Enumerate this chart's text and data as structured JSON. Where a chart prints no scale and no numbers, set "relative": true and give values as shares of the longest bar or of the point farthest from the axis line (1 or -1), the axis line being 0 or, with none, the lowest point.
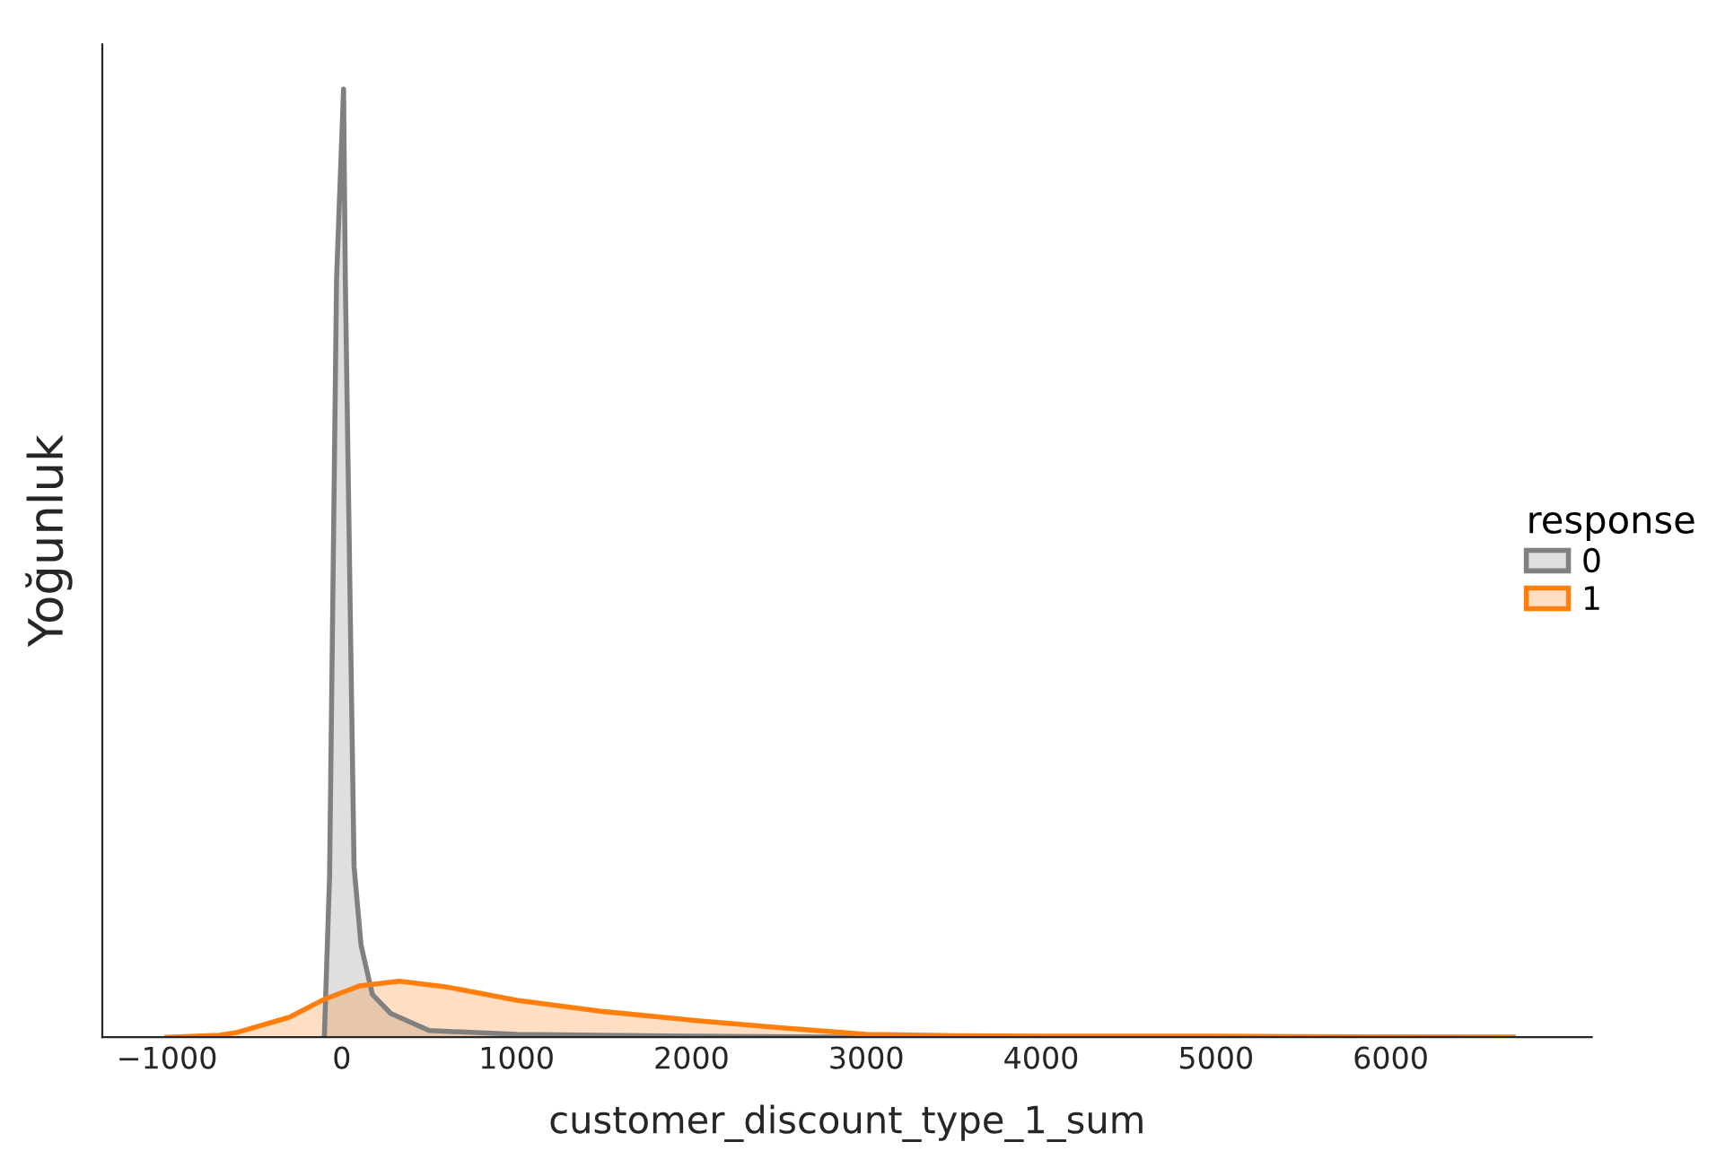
{
  "chart_data": {
    "type": "area",
    "relative": true,
    "xlabel": "customer_discount_type_1_sum",
    "ylabel": "Yoğunluk",
    "legend_title": "response",
    "legend": "right",
    "grid": false,
    "tick_labels": "x",
    "xlim": [
      -1370,
      7150
    ],
    "xticks": [
      {
        "value": -1000,
        "label": "−1000"
      },
      0,
      1000,
      2000,
      3000,
      4000,
      5000,
      6000
    ],
    "series": [
      {
        "name": "0",
        "color": "#808080",
        "x": [
          -100,
          -70,
          -30,
          10,
          20,
          70,
          110,
          175,
          280,
          500,
          1000,
          2000,
          3000,
          6700
        ],
        "values": [
          0,
          0.17,
          0.8,
          1,
          0.8,
          0.18,
          0.097,
          0.045,
          0.025,
          0.007,
          0.003,
          0.001,
          0,
          0
        ]
      },
      {
        "name": "1",
        "color": "#ff7f0e",
        "x": [
          -1000,
          -700,
          -600,
          -300,
          -100,
          0,
          100,
          330,
          600,
          1000,
          1500,
          2000,
          2500,
          3000,
          3500,
          4000,
          5000,
          5500,
          6700
        ],
        "values": [
          0,
          0.002,
          0.005,
          0.021,
          0.04,
          0.047,
          0.054,
          0.059,
          0.053,
          0.039,
          0.027,
          0.018,
          0.01,
          0.003,
          0.0015,
          0.001,
          0.001,
          0.0005,
          0
        ]
      }
    ]
  }
}
